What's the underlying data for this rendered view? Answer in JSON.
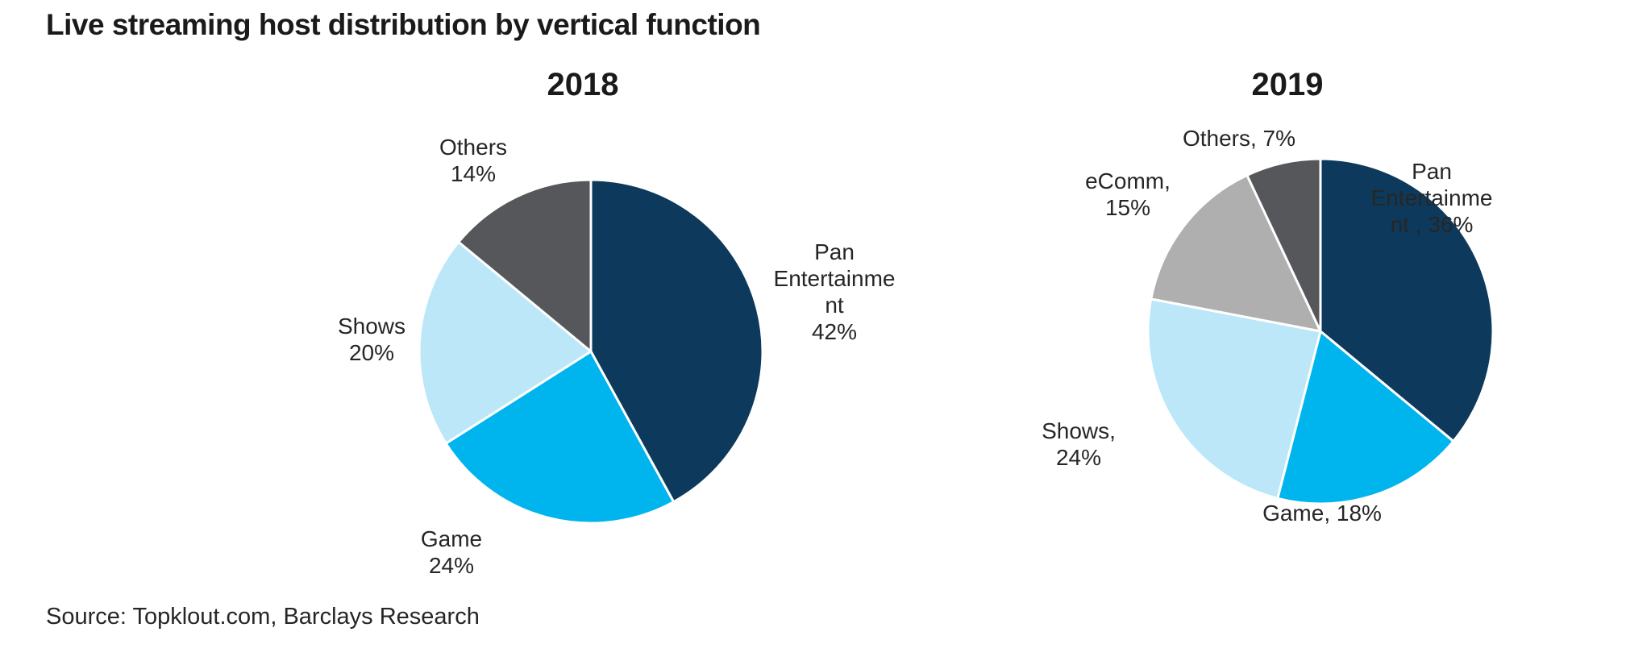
{
  "page": {
    "title": "Live streaming host distribution by vertical function",
    "source": "Source: Topklout.com, Barclays Research"
  },
  "colors": {
    "navy": "#0d3a5c",
    "cyan": "#00b4ee",
    "light_blue": "#bce7f8",
    "medium_gray": "#afafaf",
    "dark_gray": "#55575a",
    "slice_border": "#ffffff",
    "text": "#262626",
    "title_text": "#1a1a1a"
  },
  "chart_data": [
    {
      "type": "pie",
      "title": "2018",
      "unit": "%",
      "direction": "clockwise",
      "start_angle_deg": 0,
      "labels_position": "outside",
      "legend": "none",
      "slices": [
        {
          "name": "Pan Entertainment",
          "value": 42,
          "color": "#0d3a5c",
          "label_lines": [
            "Pan",
            "Entertainme",
            "nt",
            "42%"
          ]
        },
        {
          "name": "Game",
          "value": 24,
          "color": "#00b4ee",
          "label_lines": [
            "Game",
            "24%"
          ]
        },
        {
          "name": "Shows",
          "value": 20,
          "color": "#bce7f8",
          "label_lines": [
            "Shows",
            "20%"
          ]
        },
        {
          "name": "Others",
          "value": 14,
          "color": "#55575a",
          "label_lines": [
            "Others",
            "14%"
          ]
        }
      ]
    },
    {
      "type": "pie",
      "title": "2019",
      "unit": "%",
      "direction": "clockwise",
      "start_angle_deg": 0,
      "labels_position": "outside",
      "legend": "none",
      "slices": [
        {
          "name": "Pan Entertainment",
          "value": 36,
          "color": "#0d3a5c",
          "label_lines": [
            "Pan",
            "Entertainme",
            "nt , 36%"
          ]
        },
        {
          "name": "Game",
          "value": 18,
          "color": "#00b4ee",
          "label_lines": [
            "Game, 18%"
          ]
        },
        {
          "name": "Shows",
          "value": 24,
          "color": "#bce7f8",
          "label_lines": [
            "Shows,",
            "24%"
          ]
        },
        {
          "name": "eComm",
          "value": 15,
          "color": "#afafaf",
          "label_lines": [
            "eComm,",
            "15%"
          ]
        },
        {
          "name": "Others",
          "value": 7,
          "color": "#55575a",
          "label_lines": [
            "Others, 7%"
          ]
        }
      ]
    }
  ]
}
